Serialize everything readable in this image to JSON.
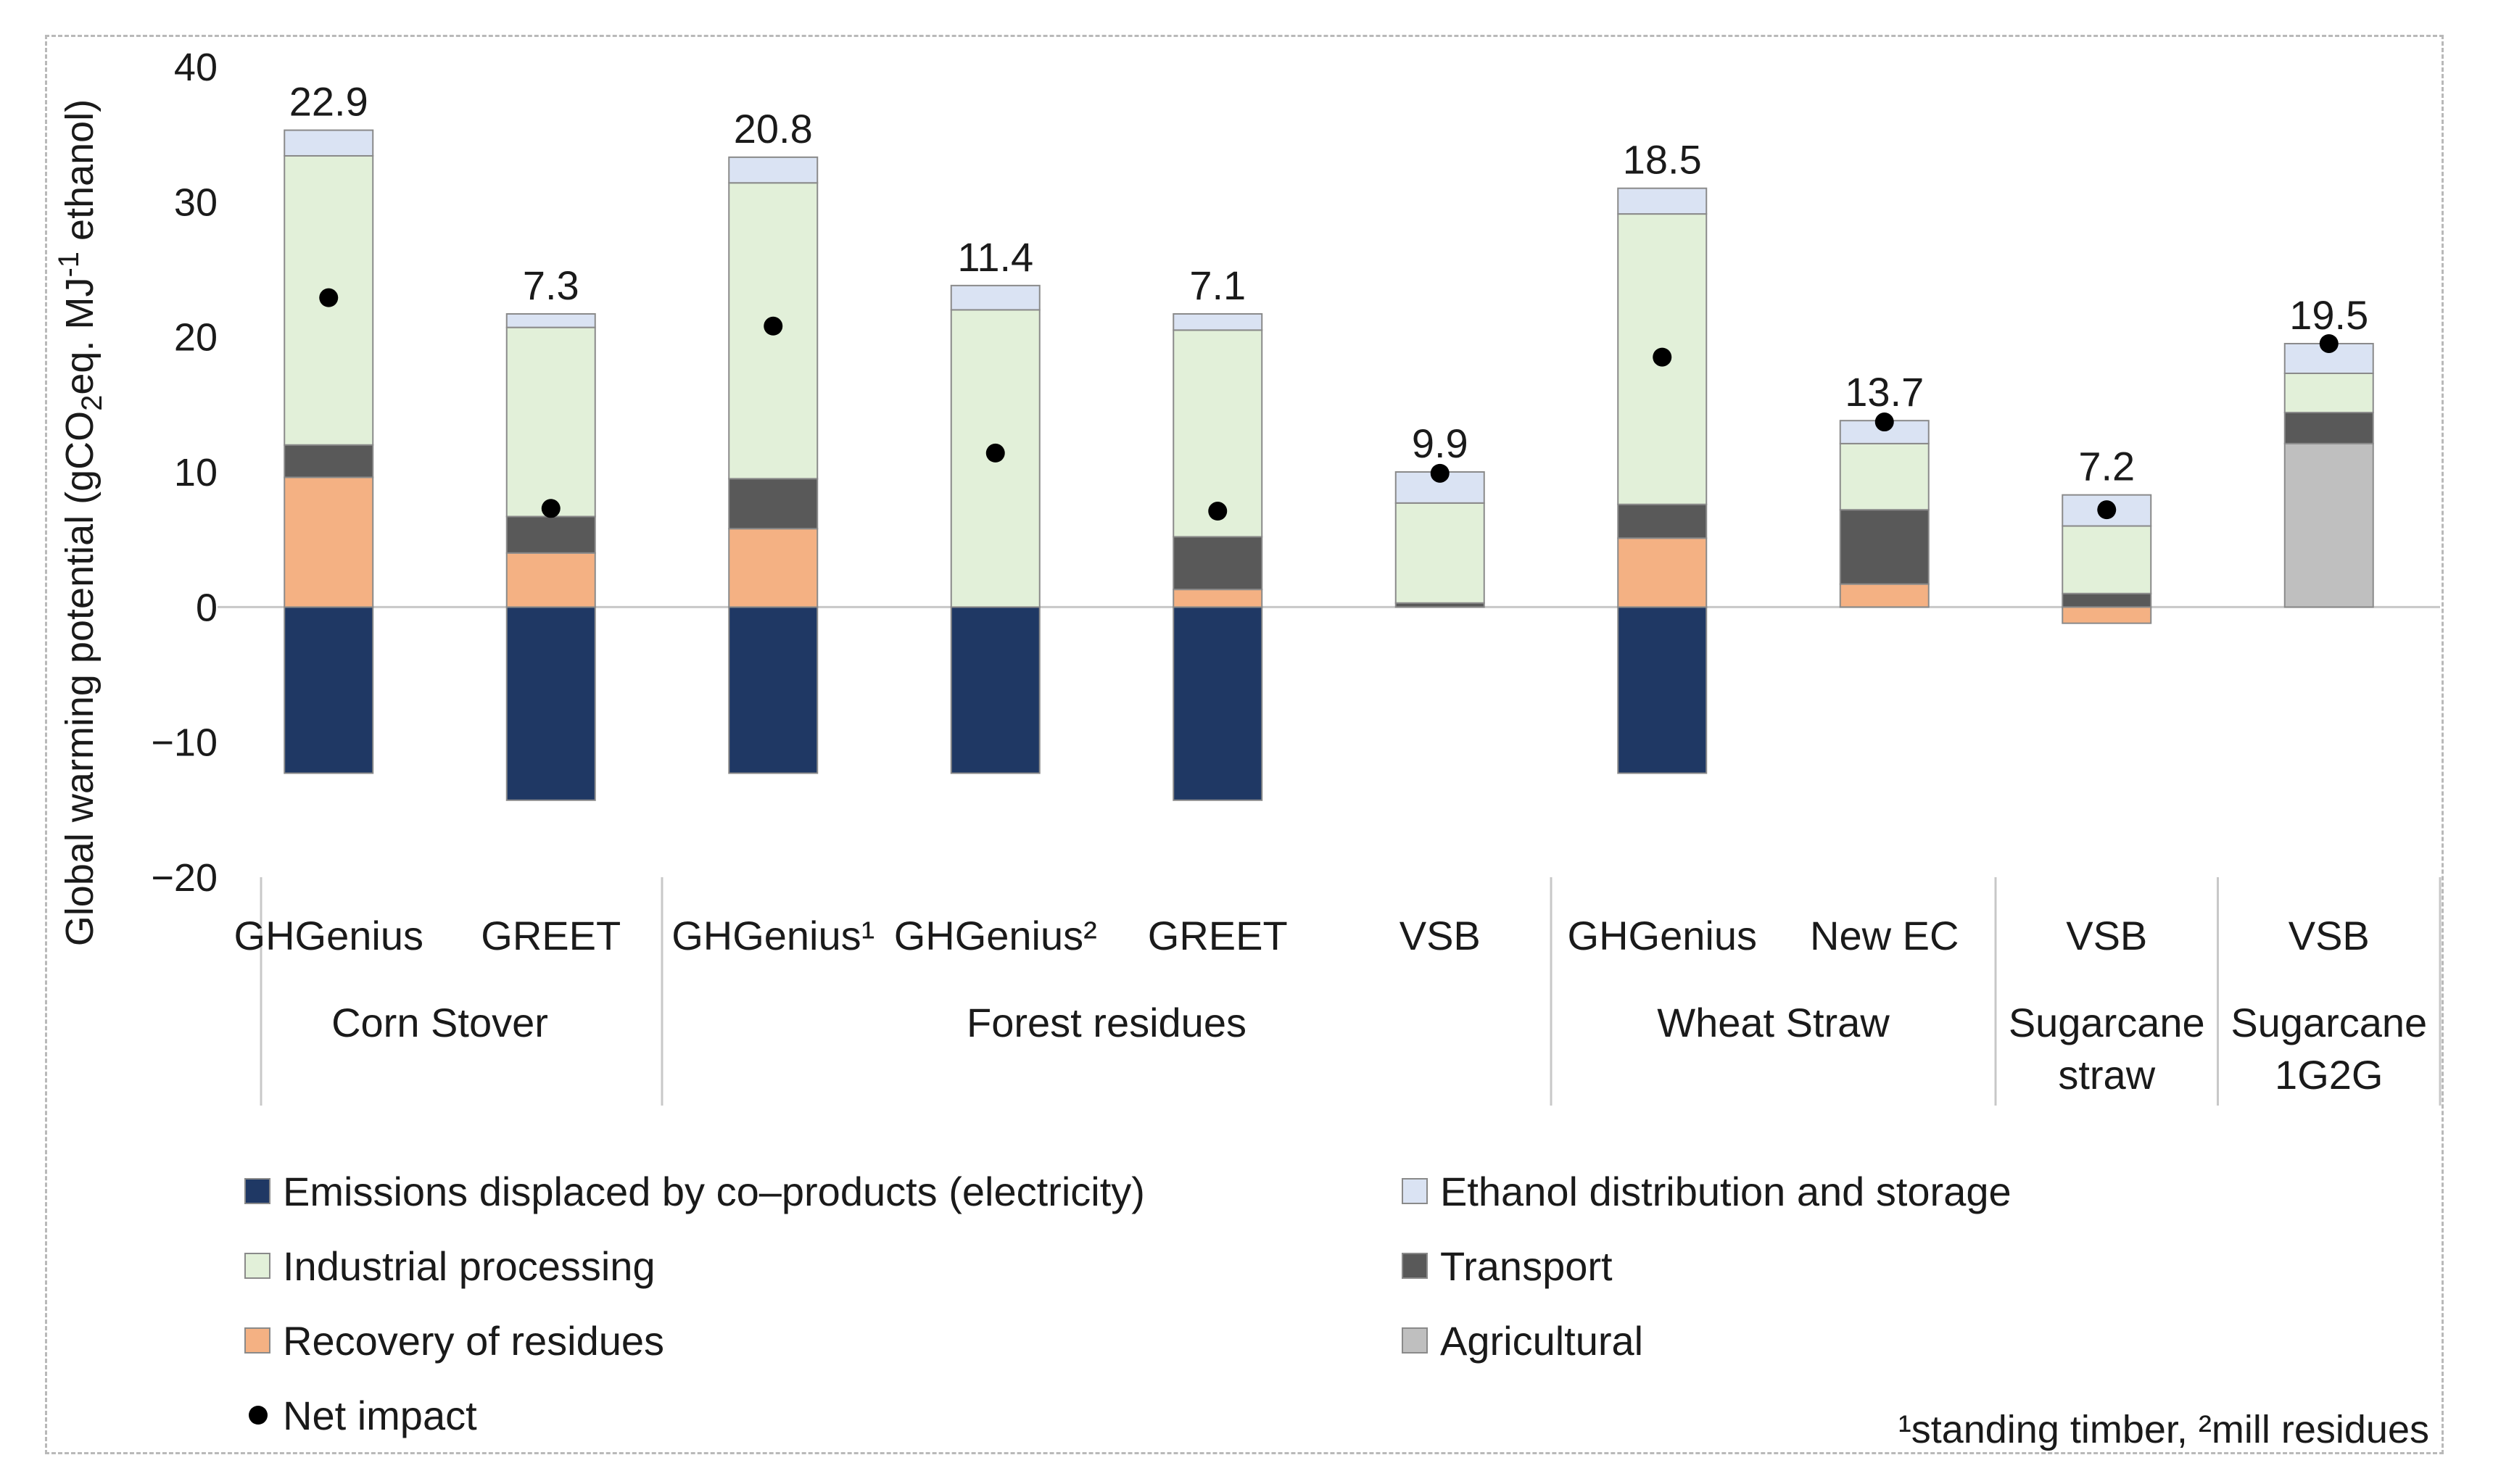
{
  "chart_data": {
    "type": "bar",
    "stacked": true,
    "title": "",
    "ylabel_parts": [
      "Global warming potential (gCO",
      "2",
      "eq. MJ",
      "-1",
      " ethanol)"
    ],
    "ylim": [
      -20,
      40
    ],
    "yticks": [
      40,
      30,
      20,
      10,
      0,
      -10,
      -20
    ],
    "ytick_labels": [
      "40",
      "30",
      "20",
      "10",
      "0",
      "−10",
      "−20"
    ],
    "categories": [
      "GHGenius",
      "GREET",
      "GHGenius¹",
      "GHGenius²",
      "GREET",
      "VSB",
      "GHGenius",
      "New EC",
      "VSB",
      "VSB"
    ],
    "groups": [
      {
        "label_lines": [
          "Corn Stover"
        ],
        "span": [
          0,
          1
        ]
      },
      {
        "label_lines": [
          "Forest residues"
        ],
        "span": [
          2,
          5
        ]
      },
      {
        "label_lines": [
          "Wheat Straw"
        ],
        "span": [
          6,
          7
        ]
      },
      {
        "label_lines": [
          "Sugarcane",
          "straw"
        ],
        "span": [
          8,
          8
        ]
      },
      {
        "label_lines": [
          "Sugarcane",
          "1G2G"
        ],
        "span": [
          9,
          9
        ]
      }
    ],
    "series": [
      {
        "key": "coproducts",
        "name": "Emissions displaced by co–products (electricity)",
        "color": "#1f3864",
        "values": [
          -12.3,
          -14.3,
          -12.3,
          -12.3,
          -14.3,
          0,
          -12.3,
          0,
          0,
          0
        ]
      },
      {
        "key": "agricultural",
        "name": "Agricultural",
        "color": "#bfbfbf",
        "values": [
          0,
          0,
          0,
          0,
          0,
          0,
          0,
          0,
          0,
          12.1
        ]
      },
      {
        "key": "recovery",
        "name": "Recovery of residues",
        "color": "#f4b183",
        "values": [
          9.6,
          4.0,
          5.8,
          0,
          1.3,
          0,
          5.1,
          1.7,
          -1.2,
          0
        ]
      },
      {
        "key": "transport",
        "name": "Transport",
        "color": "#595959",
        "values": [
          2.4,
          2.7,
          3.7,
          0,
          3.9,
          0.3,
          2.5,
          5.5,
          1.0,
          2.3
        ]
      },
      {
        "key": "industrial",
        "name": "Industrial processing",
        "color": "#e2f0d9",
        "values": [
          21.4,
          14.0,
          21.9,
          22.0,
          15.3,
          7.4,
          21.5,
          4.9,
          5.0,
          2.9
        ]
      },
      {
        "key": "distribution",
        "name": "Ethanol distribution and storage",
        "color": "#dae3f3",
        "values": [
          1.9,
          1.0,
          1.9,
          1.8,
          1.2,
          2.3,
          1.9,
          1.7,
          2.3,
          2.2
        ]
      }
    ],
    "net_impact": {
      "name": "Net impact",
      "color": "#000000",
      "values": [
        22.9,
        7.3,
        20.8,
        11.4,
        7.1,
        9.9,
        18.5,
        13.7,
        7.2,
        19.5
      ],
      "labels": [
        "22.9",
        "7.3",
        "20.8",
        "11.4",
        "7.1",
        "9.9",
        "18.5",
        "13.7",
        "7.2",
        "19.5"
      ]
    },
    "legend": {
      "placement": "bottom",
      "items": [
        {
          "key": "coproducts",
          "label": "Emissions displaced by co–products (electricity)",
          "marker": "square",
          "color": "#1f3864"
        },
        {
          "key": "distribution",
          "label": "Ethanol distribution and storage",
          "marker": "square",
          "color": "#dae3f3"
        },
        {
          "key": "industrial",
          "label": "Industrial processing",
          "marker": "square",
          "color": "#e2f0d9"
        },
        {
          "key": "transport",
          "label": "Transport",
          "marker": "square",
          "color": "#595959"
        },
        {
          "key": "recovery",
          "label": "Recovery of residues",
          "marker": "square",
          "color": "#f4b183"
        },
        {
          "key": "agricultural",
          "label": "Agricultural",
          "marker": "square",
          "color": "#bfbfbf"
        },
        {
          "key": "net",
          "label": "Net impact",
          "marker": "dot",
          "color": "#000000"
        }
      ]
    },
    "footnote": "¹standing timber, ²mill residues"
  }
}
